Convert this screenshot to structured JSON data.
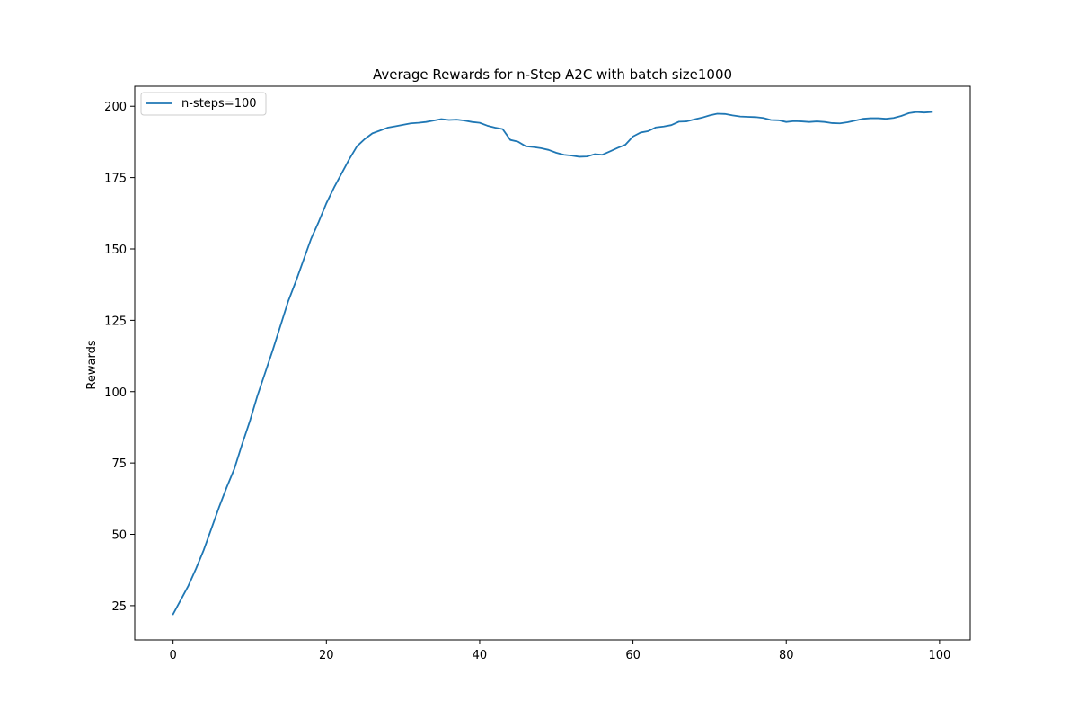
{
  "chart_data": {
    "type": "line",
    "title": "Average Rewards for n-Step A2C with batch size1000",
    "xlabel": "",
    "ylabel": "Rewards",
    "xlim": [
      -5,
      104
    ],
    "ylim": [
      13,
      207
    ],
    "xticks": [
      0,
      20,
      40,
      60,
      80,
      100
    ],
    "yticks": [
      25,
      50,
      75,
      100,
      125,
      150,
      175,
      200
    ],
    "grid": false,
    "legend_position": "top-left",
    "series": [
      {
        "name": "n-steps=100",
        "color": "#1f77b4",
        "x": [
          0,
          1,
          2,
          3,
          4,
          5,
          6,
          7,
          8,
          9,
          10,
          11,
          12,
          13,
          14,
          15,
          16,
          17,
          18,
          19,
          20,
          21,
          22,
          23,
          24,
          25,
          26,
          27,
          28,
          29,
          30,
          31,
          32,
          33,
          34,
          35,
          36,
          37,
          38,
          39,
          40,
          41,
          42,
          43,
          44,
          45,
          46,
          47,
          48,
          49,
          50,
          51,
          52,
          53,
          54,
          55,
          56,
          57,
          58,
          59,
          60,
          61,
          62,
          63,
          64,
          65,
          66,
          67,
          68,
          69,
          70,
          71,
          72,
          73,
          74,
          75,
          76,
          77,
          78,
          79,
          80,
          81,
          82,
          83,
          84,
          85,
          86,
          87,
          88,
          89,
          90,
          91,
          92,
          93,
          94,
          95,
          96,
          97,
          98,
          99
        ],
        "y": [
          22,
          27,
          32,
          38,
          44.5,
          52,
          59.5,
          66.5,
          73,
          81.5,
          89.5,
          98.5,
          106.5,
          114.5,
          123,
          131.5,
          138.5,
          146,
          153.5,
          159.5,
          166,
          171.5,
          176.5,
          181.5,
          186,
          188.5,
          190.5,
          191.5,
          192.5,
          193,
          193.5,
          194,
          194.2,
          194.5,
          195,
          195.5,
          195.2,
          195.3,
          195,
          194.5,
          194.2,
          193.2,
          192.5,
          192,
          188.2,
          187.6,
          186,
          185.7,
          185.3,
          184.7,
          183.7,
          183,
          182.7,
          182.3,
          182.4,
          183.2,
          183,
          184.2,
          185.4,
          186.5,
          189.4,
          190.8,
          191.3,
          192.6,
          192.9,
          193.4,
          194.6,
          194.7,
          195.4,
          196,
          196.8,
          197.4,
          197.3,
          196.8,
          196.4,
          196.3,
          196.2,
          195.9,
          195.2,
          195.1,
          194.5,
          194.8,
          194.7,
          194.5,
          194.7,
          194.5,
          194.1,
          194,
          194.4,
          195,
          195.6,
          195.8,
          195.8,
          195.6,
          195.9,
          196.6,
          197.6,
          198,
          197.8,
          198
        ]
      }
    ]
  }
}
